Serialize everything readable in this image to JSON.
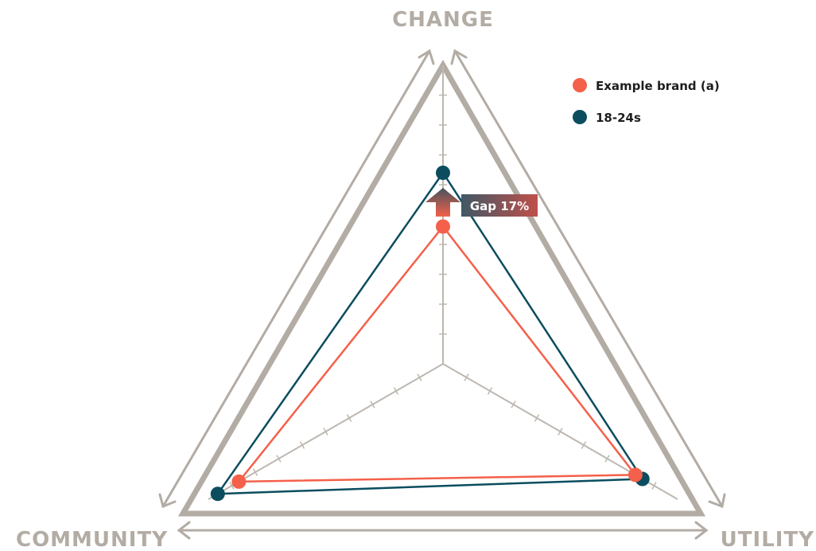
{
  "chart_data": {
    "type": "radar",
    "axes": [
      "CHANGE",
      "UTILITY",
      "COMMUNITY"
    ],
    "ticks_per_axis": 10,
    "series": [
      {
        "name": "Example brand (a)",
        "color": "#f4604a",
        "values": [
          0.46,
          0.82,
          0.87
        ]
      },
      {
        "name": "18-24s",
        "color": "#0b4d5f",
        "values": [
          0.64,
          0.85,
          0.96
        ]
      }
    ],
    "annotation": {
      "label": "Gap 17%",
      "axis": "CHANGE"
    },
    "colors": {
      "frame": "#b3aca4",
      "axis": "#bdb7b0",
      "label_bg": "#b24d45"
    }
  }
}
